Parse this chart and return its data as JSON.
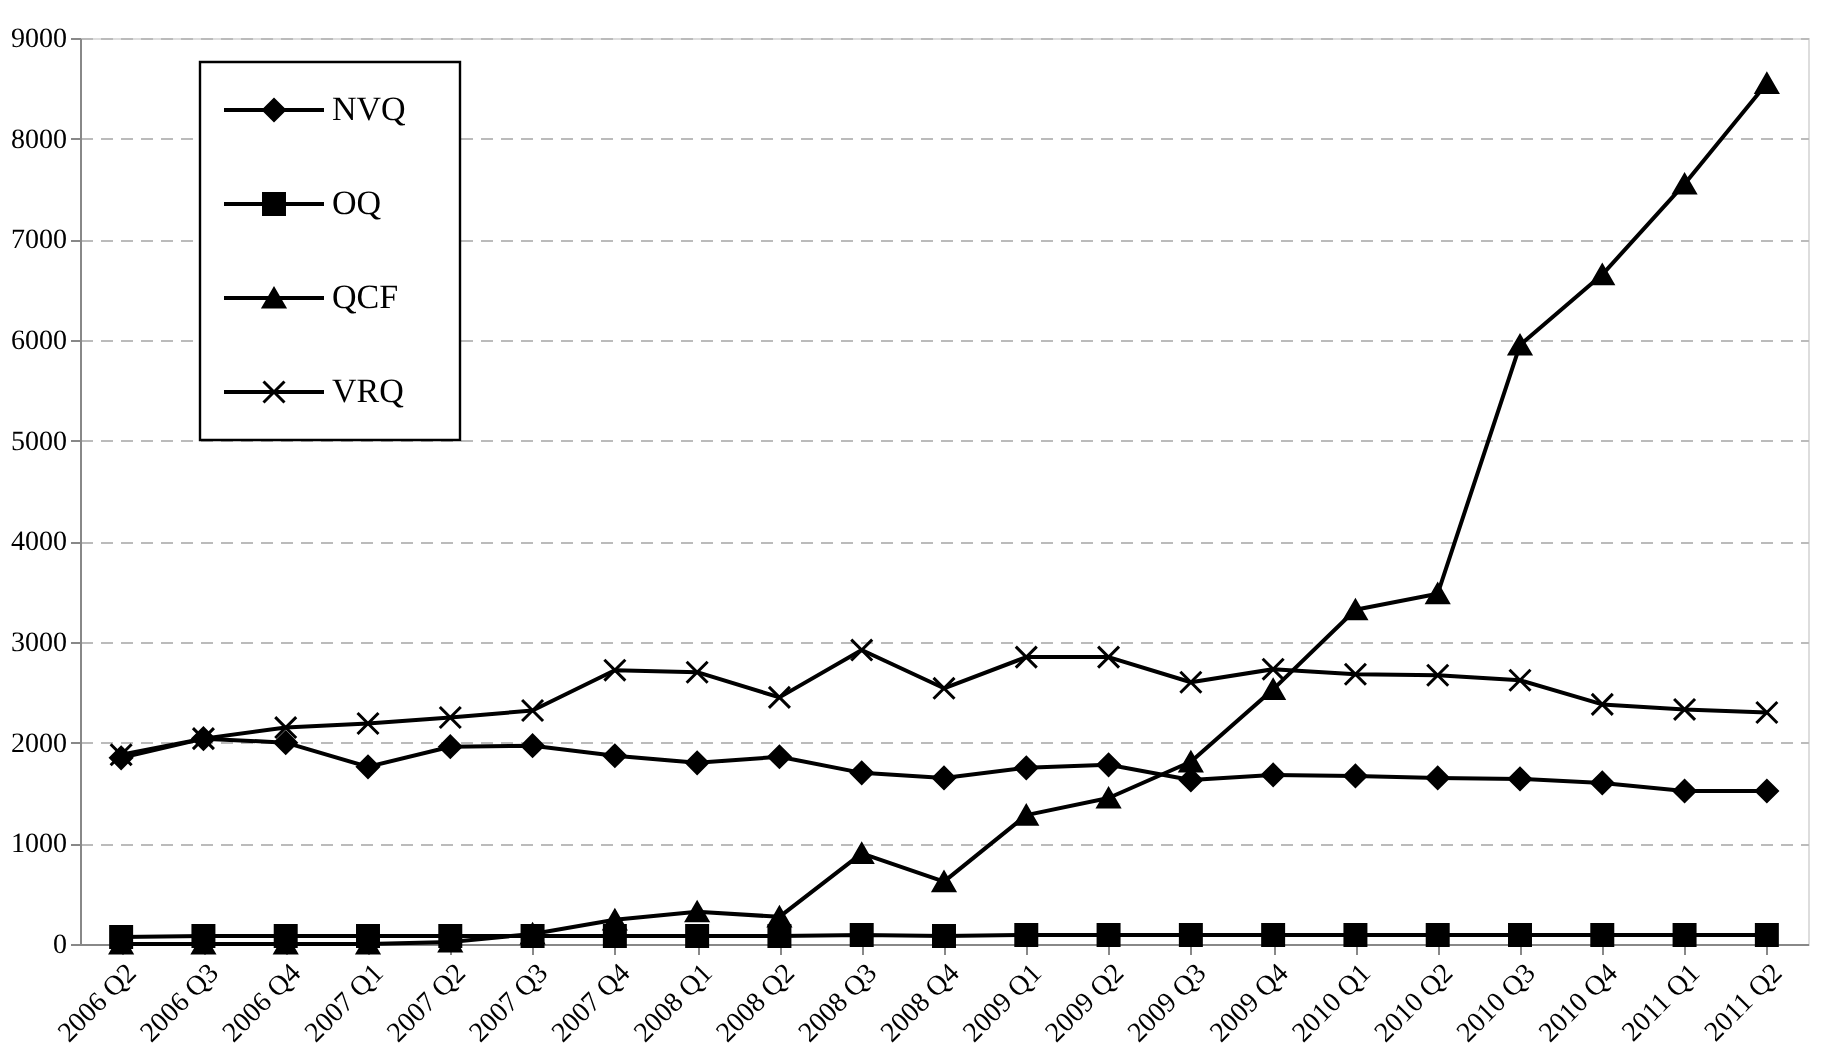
{
  "chart_data": {
    "type": "line",
    "categories": [
      "2006 Q2",
      "2006 Q3",
      "2006 Q4",
      "2007 Q1",
      "2007 Q2",
      "2007 Q3",
      "2007 Q4",
      "2008 Q1",
      "2008 Q2",
      "2008 Q3",
      "2008 Q4",
      "2009 Q1",
      "2009 Q2",
      "2009 Q3",
      "2009 Q4",
      "2010 Q1",
      "2010 Q2",
      "2010 Q3",
      "2010 Q4",
      "2011 Q1",
      "2011 Q2"
    ],
    "ylim": [
      0,
      9000
    ],
    "yticks": [
      0,
      1000,
      2000,
      3000,
      4000,
      5000,
      6000,
      7000,
      8000,
      9000
    ],
    "grid": "y",
    "legend": "top left",
    "line_style": "solid",
    "series": [
      {
        "name": "NVQ",
        "color": "#000000",
        "marker": "diamond",
        "values": [
          1850,
          2040,
          2000,
          1760,
          1960,
          1970,
          1870,
          1800,
          1860,
          1700,
          1650,
          1750,
          1780,
          1630,
          1680,
          1670,
          1650,
          1640,
          1600,
          1520,
          1520
        ]
      },
      {
        "name": "OQ",
        "color": "#000000",
        "marker": "square",
        "values": [
          70,
          80,
          80,
          80,
          80,
          80,
          80,
          80,
          80,
          90,
          80,
          90,
          90,
          90,
          90,
          90,
          90,
          90,
          90,
          90,
          90
        ]
      },
      {
        "name": "QCF",
        "color": "#000000",
        "marker": "triangle",
        "values": [
          0,
          0,
          0,
          0,
          20,
          100,
          240,
          320,
          270,
          900,
          620,
          1280,
          1450,
          1810,
          2530,
          3320,
          3480,
          5950,
          6650,
          7550,
          8550
        ]
      },
      {
        "name": "VRQ",
        "color": "#000000",
        "marker": "cross",
        "values": [
          1880,
          2040,
          2150,
          2190,
          2250,
          2320,
          2720,
          2700,
          2450,
          2920,
          2540,
          2850,
          2850,
          2600,
          2730,
          2680,
          2670,
          2620,
          2380,
          2330,
          2300
        ]
      }
    ]
  }
}
